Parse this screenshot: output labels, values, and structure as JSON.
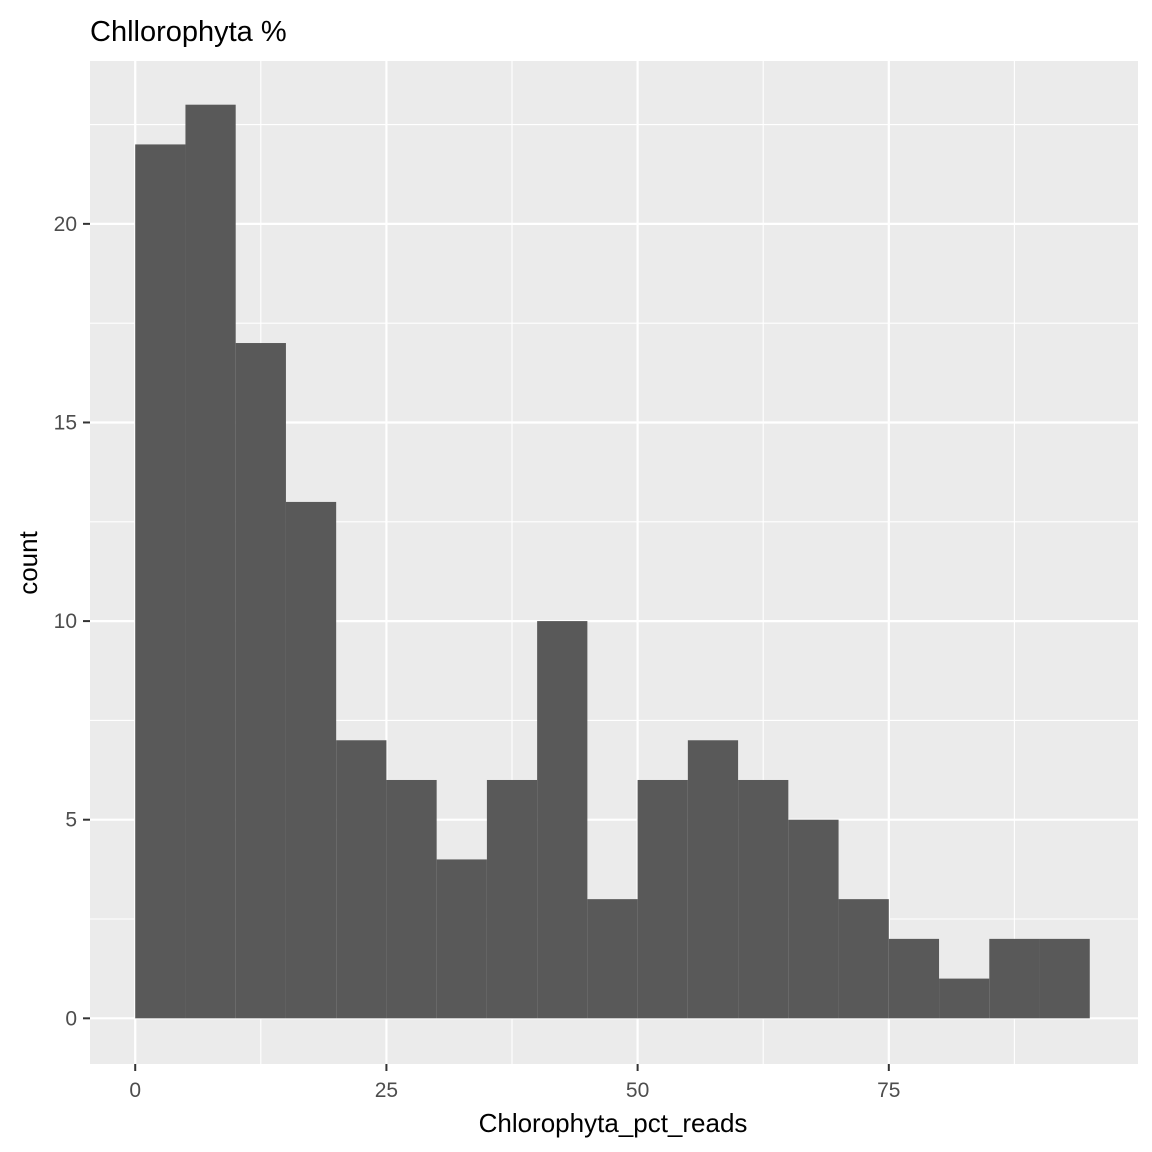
{
  "chart_data": {
    "type": "bar",
    "subtype": "histogram",
    "title": "Chllorophyta %",
    "xlabel": "Chlorophyta_pct_reads",
    "ylabel": "count",
    "bin_width": 5,
    "bins": [
      {
        "x0": 0,
        "x1": 5,
        "count": 22
      },
      {
        "x0": 5,
        "x1": 10,
        "count": 23
      },
      {
        "x0": 10,
        "x1": 15,
        "count": 17
      },
      {
        "x0": 15,
        "x1": 20,
        "count": 13
      },
      {
        "x0": 20,
        "x1": 25,
        "count": 7
      },
      {
        "x0": 25,
        "x1": 30,
        "count": 6
      },
      {
        "x0": 30,
        "x1": 35,
        "count": 4
      },
      {
        "x0": 35,
        "x1": 40,
        "count": 6
      },
      {
        "x0": 40,
        "x1": 45,
        "count": 10
      },
      {
        "x0": 45,
        "x1": 50,
        "count": 3
      },
      {
        "x0": 50,
        "x1": 55,
        "count": 6
      },
      {
        "x0": 55,
        "x1": 60,
        "count": 7
      },
      {
        "x0": 60,
        "x1": 65,
        "count": 6
      },
      {
        "x0": 65,
        "x1": 70,
        "count": 5
      },
      {
        "x0": 70,
        "x1": 75,
        "count": 3
      },
      {
        "x0": 75,
        "x1": 80,
        "count": 2
      },
      {
        "x0": 80,
        "x1": 85,
        "count": 1
      },
      {
        "x0": 85,
        "x1": 90,
        "count": 2
      },
      {
        "x0": 90,
        "x1": 95,
        "count": 2
      }
    ],
    "xlim": [
      -4.5,
      99.8
    ],
    "ylim": [
      -1.15,
      24.1
    ],
    "x_ticks": [
      0,
      25,
      50,
      75
    ],
    "x_tick_labels": [
      "0",
      "25",
      "50",
      "75"
    ],
    "y_ticks": [
      0,
      5,
      10,
      15,
      20
    ],
    "y_tick_labels": [
      "0",
      "5",
      "10",
      "15",
      "20"
    ],
    "grid": true,
    "colors": {
      "bar": "#595959",
      "panel": "#ebebeb",
      "grid": "#ffffff",
      "tick_text": "#4d4d4d"
    }
  }
}
